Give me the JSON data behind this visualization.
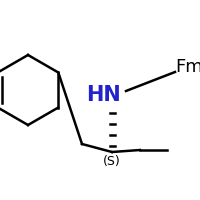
{
  "bg_color": "#ffffff",
  "bond_color": "#000000",
  "N_color": "#2222cc",
  "S_label": "(S)",
  "N_label": "HN",
  "Fmoc_label": "Fmoc",
  "label_fontsize": 13,
  "small_fontsize": 9,
  "fig_width": 2.0,
  "fig_height": 2.0,
  "dpi": 100
}
